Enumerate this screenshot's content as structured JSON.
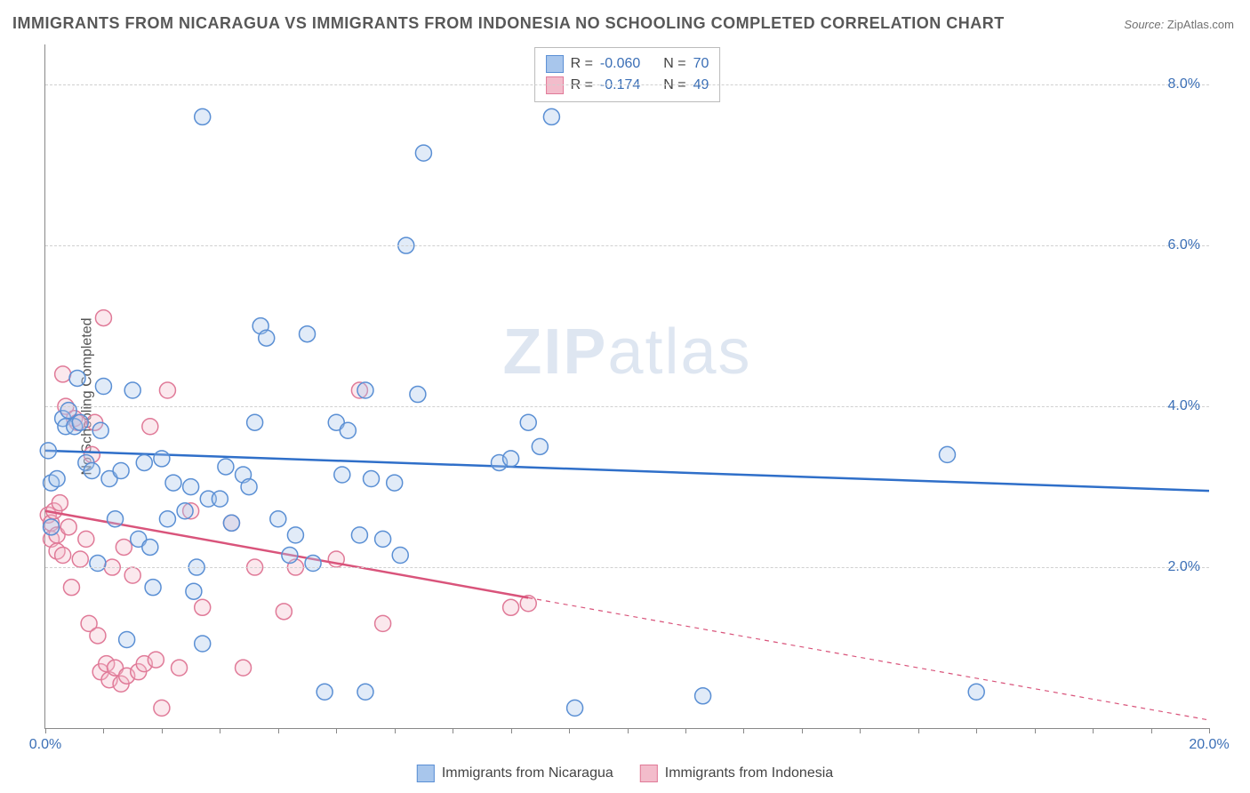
{
  "title": "IMMIGRANTS FROM NICARAGUA VS IMMIGRANTS FROM INDONESIA NO SCHOOLING COMPLETED CORRELATION CHART",
  "source_label": "Source:",
  "source_value": "ZipAtlas.com",
  "y_axis_label": "No Schooling Completed",
  "watermark_bold": "ZIP",
  "watermark_rest": "atlas",
  "chart": {
    "type": "scatter",
    "background_color": "#ffffff",
    "grid_color": "#d0d0d0",
    "axis_color": "#888888",
    "tick_label_color": "#3b6fb6",
    "xlim": [
      0,
      20
    ],
    "ylim": [
      0,
      8.5
    ],
    "x_ticks": [
      0,
      1,
      2,
      3,
      4,
      5,
      6,
      7,
      8,
      9,
      10,
      11,
      12,
      13,
      14,
      15,
      16,
      17,
      18,
      19,
      20
    ],
    "x_tick_labels": {
      "0": "0.0%",
      "20": "20.0%"
    },
    "y_grid": [
      2,
      4,
      6,
      8
    ],
    "y_tick_labels": {
      "2": "2.0%",
      "4": "4.0%",
      "6": "6.0%",
      "8": "8.0%"
    },
    "marker_radius": 9,
    "marker_stroke_width": 1.5,
    "marker_fill_opacity": 0.35,
    "trend_line_width": 2.5,
    "series": [
      {
        "id": "nicaragua",
        "label": "Immigrants from Nicaragua",
        "color_fill": "#a8c6ec",
        "color_stroke": "#5a8fd4",
        "color_line": "#2f6fc9",
        "R": "-0.060",
        "N": "70",
        "trend": {
          "x1": 0,
          "y1": 3.45,
          "x2": 20,
          "y2": 2.95,
          "solid_end_x": 20
        },
        "points": [
          [
            0.05,
            3.45
          ],
          [
            0.1,
            3.05
          ],
          [
            0.1,
            2.5
          ],
          [
            0.2,
            3.1
          ],
          [
            0.3,
            3.85
          ],
          [
            0.35,
            3.75
          ],
          [
            0.4,
            3.95
          ],
          [
            0.5,
            3.75
          ],
          [
            0.55,
            4.35
          ],
          [
            0.6,
            3.8
          ],
          [
            0.7,
            3.3
          ],
          [
            0.8,
            3.2
          ],
          [
            0.9,
            2.05
          ],
          [
            0.95,
            3.7
          ],
          [
            1.0,
            4.25
          ],
          [
            1.1,
            3.1
          ],
          [
            1.2,
            2.6
          ],
          [
            1.3,
            3.2
          ],
          [
            1.4,
            1.1
          ],
          [
            1.5,
            4.2
          ],
          [
            1.6,
            2.35
          ],
          [
            1.7,
            3.3
          ],
          [
            1.8,
            2.25
          ],
          [
            1.85,
            1.75
          ],
          [
            2.0,
            3.35
          ],
          [
            2.1,
            2.6
          ],
          [
            2.2,
            3.05
          ],
          [
            2.4,
            2.7
          ],
          [
            2.5,
            3.0
          ],
          [
            2.55,
            1.7
          ],
          [
            2.6,
            2.0
          ],
          [
            2.7,
            1.05
          ],
          [
            2.8,
            2.85
          ],
          [
            2.7,
            7.6
          ],
          [
            3.0,
            2.85
          ],
          [
            3.1,
            3.25
          ],
          [
            3.2,
            2.55
          ],
          [
            3.4,
            3.15
          ],
          [
            3.5,
            3.0
          ],
          [
            3.6,
            3.8
          ],
          [
            3.7,
            5.0
          ],
          [
            3.8,
            4.85
          ],
          [
            4.2,
            2.15
          ],
          [
            4.3,
            2.4
          ],
          [
            4.5,
            4.9
          ],
          [
            4.6,
            2.05
          ],
          [
            4.8,
            0.45
          ],
          [
            5.0,
            3.8
          ],
          [
            5.1,
            3.15
          ],
          [
            5.2,
            3.7
          ],
          [
            5.4,
            2.4
          ],
          [
            5.5,
            0.45
          ],
          [
            5.5,
            4.2
          ],
          [
            5.6,
            3.1
          ],
          [
            5.8,
            2.35
          ],
          [
            6.0,
            3.05
          ],
          [
            6.1,
            2.15
          ],
          [
            6.2,
            6.0
          ],
          [
            6.4,
            4.15
          ],
          [
            6.5,
            7.15
          ],
          [
            7.8,
            3.3
          ],
          [
            8.0,
            3.35
          ],
          [
            8.3,
            3.8
          ],
          [
            8.5,
            3.5
          ],
          [
            8.7,
            7.6
          ],
          [
            9.1,
            0.25
          ],
          [
            11.3,
            0.4
          ],
          [
            15.5,
            3.4
          ],
          [
            16.0,
            0.45
          ],
          [
            4.0,
            2.6
          ]
        ]
      },
      {
        "id": "indonesia",
        "label": "Immigrants from Indonesia",
        "color_fill": "#f3bccb",
        "color_stroke": "#e07a98",
        "color_line": "#d9547b",
        "R": "-0.174",
        "N": "49",
        "trend": {
          "x1": 0,
          "y1": 2.7,
          "x2": 20,
          "y2": 0.1,
          "solid_end_x": 8.3
        },
        "points": [
          [
            0.05,
            2.65
          ],
          [
            0.1,
            2.55
          ],
          [
            0.1,
            2.35
          ],
          [
            0.15,
            2.7
          ],
          [
            0.2,
            2.4
          ],
          [
            0.2,
            2.2
          ],
          [
            0.25,
            2.8
          ],
          [
            0.3,
            4.4
          ],
          [
            0.3,
            2.15
          ],
          [
            0.35,
            4.0
          ],
          [
            0.4,
            2.5
          ],
          [
            0.45,
            1.75
          ],
          [
            0.5,
            3.85
          ],
          [
            0.55,
            3.8
          ],
          [
            0.6,
            2.1
          ],
          [
            0.7,
            2.35
          ],
          [
            0.75,
            1.3
          ],
          [
            0.8,
            3.4
          ],
          [
            0.85,
            3.8
          ],
          [
            0.9,
            1.15
          ],
          [
            0.95,
            0.7
          ],
          [
            1.0,
            5.1
          ],
          [
            1.05,
            0.8
          ],
          [
            1.1,
            0.6
          ],
          [
            1.15,
            2.0
          ],
          [
            1.2,
            0.75
          ],
          [
            1.3,
            0.55
          ],
          [
            1.35,
            2.25
          ],
          [
            1.4,
            0.65
          ],
          [
            1.5,
            1.9
          ],
          [
            1.6,
            0.7
          ],
          [
            1.7,
            0.8
          ],
          [
            1.8,
            3.75
          ],
          [
            1.9,
            0.85
          ],
          [
            2.0,
            0.25
          ],
          [
            2.1,
            4.2
          ],
          [
            2.3,
            0.75
          ],
          [
            2.5,
            2.7
          ],
          [
            2.7,
            1.5
          ],
          [
            3.2,
            2.55
          ],
          [
            3.4,
            0.75
          ],
          [
            3.6,
            2.0
          ],
          [
            4.1,
            1.45
          ],
          [
            4.3,
            2.0
          ],
          [
            5.0,
            2.1
          ],
          [
            5.4,
            4.2
          ],
          [
            5.8,
            1.3
          ],
          [
            8.0,
            1.5
          ],
          [
            8.3,
            1.55
          ]
        ]
      }
    ]
  },
  "legend_box": {
    "rows": [
      {
        "swatch": "nicaragua",
        "r_label": "R =",
        "n_label": "N ="
      },
      {
        "swatch": "indonesia",
        "r_label": "R =",
        "n_label": "N ="
      }
    ]
  }
}
